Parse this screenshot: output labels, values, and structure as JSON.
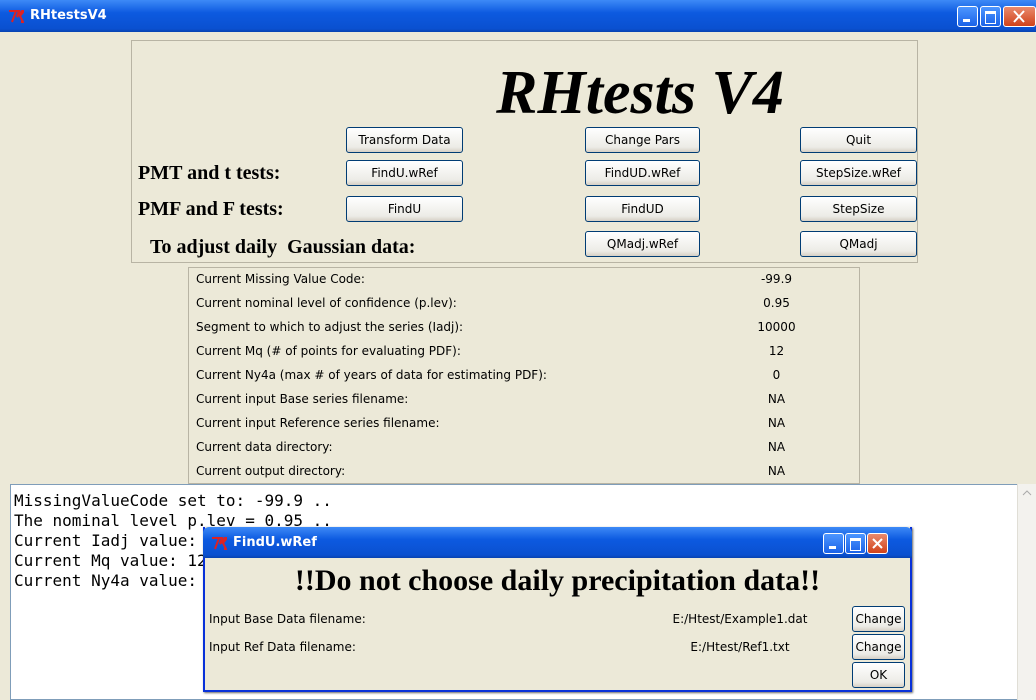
{
  "window": {
    "title": "RHtestsV4"
  },
  "header": {
    "title": "RHtests V4"
  },
  "top_buttons": [
    "Transform Data",
    "Change Pars",
    "Quit"
  ],
  "rows": [
    {
      "label": "PMT and t tests:",
      "buttons": [
        "FindU.wRef",
        "FindUD.wRef",
        "StepSize.wRef"
      ]
    },
    {
      "label": "PMF and F tests:",
      "buttons": [
        "FindU",
        "FindUD",
        "StepSize"
      ]
    },
    {
      "label": "To adjust daily  Gaussian data:",
      "buttons": [
        "QMadj.wRef",
        "QMadj"
      ]
    }
  ],
  "table": {
    "rows": [
      [
        "Current Missing Value Code:",
        -99.9
      ],
      [
        "Current nominal level of confidence (p.lev):",
        0.95
      ],
      [
        "Segment to which to adjust the series (Iadj):",
        10000
      ],
      [
        "Current Mq (# of points for evaluating PDF):",
        12
      ],
      [
        "Current Ny4a (max # of years of data for estimating PDF):",
        0
      ],
      [
        "Current input Base series filename:",
        "NA"
      ],
      [
        "Current input Reference series filename:",
        "NA"
      ],
      [
        "Current data directory:",
        "NA"
      ],
      [
        "Current output directory:",
        "NA"
      ]
    ]
  },
  "console": {
    "lines": [
      "MissingValueCode set to: -99.9 ..",
      "The nominal level p.lev = 0.95 ..",
      "Current Iadj value: 10000",
      "Current Mq value: 12",
      "Current Ny4a value: 0"
    ]
  },
  "dialog": {
    "title": "FindU.wRef",
    "heading": "!!Do not choose daily precipitation data!!",
    "rows": [
      {
        "label": "Input Base Data filename:",
        "value": "E:/Htest/Example1.dat",
        "button": "Change"
      },
      {
        "label": "Input Ref Data filename:",
        "value": "E:/Htest/Ref1.txt",
        "button": "Change"
      }
    ],
    "ok": "OK"
  }
}
